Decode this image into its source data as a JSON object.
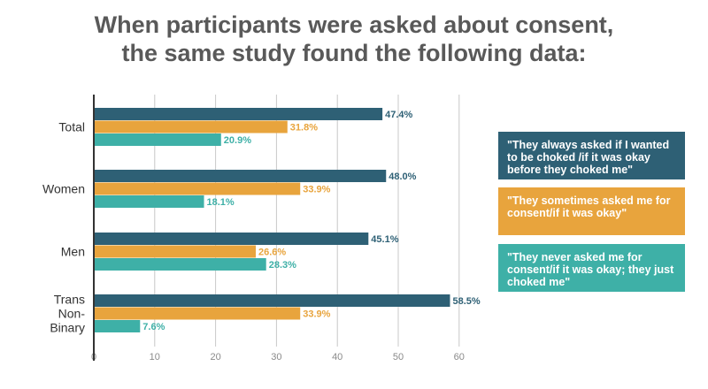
{
  "title": {
    "line1": "When participants were asked about consent,",
    "line2": "the same study found the following data:"
  },
  "colors": {
    "series1": "#2e6075",
    "series2": "#e8a43d",
    "series3": "#3eb0a7",
    "grid": "#c8c8c8",
    "axis": "#333333",
    "tick": "#8a8a8a",
    "label": "#333333",
    "title": "#595959"
  },
  "legend": [
    {
      "text": "\"They always asked if I wanted to be choked /if it was okay before they choked me\"",
      "color": "#2e6075"
    },
    {
      "text": "\"They sometimes asked me for consent/if it was okay\"",
      "color": "#e8a43d"
    },
    {
      "text": "\"They never asked me for consent/if it was okay; they just choked me\"",
      "color": "#3eb0a7"
    }
  ],
  "chart_data": {
    "type": "bar",
    "orientation": "horizontal",
    "categories": [
      "Total",
      "Women",
      "Men",
      "Trans Non-Binary"
    ],
    "category_label_lines": [
      [
        "Total"
      ],
      [
        "Women"
      ],
      [
        "Men"
      ],
      [
        "Trans",
        "Non-",
        "Binary"
      ]
    ],
    "series": [
      {
        "values": [
          47.4,
          48.0,
          45.1,
          58.5
        ],
        "labels": [
          "47.4%",
          "48.0%",
          "45.1%",
          "58.5%"
        ],
        "color": "#2e6075"
      },
      {
        "values": [
          31.8,
          33.9,
          26.6,
          33.9
        ],
        "labels": [
          "31.8%",
          "33.9%",
          "26.6%",
          "33.9%"
        ],
        "color": "#e8a43d"
      },
      {
        "values": [
          20.9,
          18.1,
          28.3,
          7.6
        ],
        "labels": [
          "20.9%",
          "18.1%",
          "28.3%",
          "7.6%"
        ],
        "color": "#3eb0a7"
      }
    ],
    "xlim": [
      0,
      60
    ],
    "xticks": [
      0,
      10,
      20,
      30,
      40,
      50,
      60
    ],
    "grid": true,
    "legend_position": "right"
  }
}
